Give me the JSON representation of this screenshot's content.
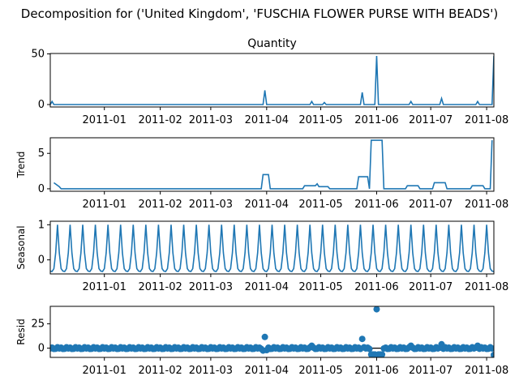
{
  "figure_title": "Decomposition for ('United Kingdom', 'FUSCHIA FLOWER PURSE WITH BEADS')",
  "colors": {
    "line": "#1f77b4",
    "axis": "#000000",
    "zero_line": "#000000"
  },
  "chart_data": [
    {
      "type": "line",
      "name": "observed",
      "title": "Quantity",
      "ylabel": "",
      "xlim": [
        "2010-12-02",
        "2011-08-05"
      ],
      "ylim": [
        -2.4,
        50.4
      ],
      "yticks": [
        0,
        50
      ],
      "xticks": [
        "2011-01",
        "2011-02",
        "2011-03",
        "2011-04",
        "2011-05",
        "2011-06",
        "2011-07",
        "2011-08"
      ],
      "baseline": 0,
      "spikes": [
        {
          "x": "2010-12-03",
          "y": 3
        },
        {
          "x": "2011-03-31",
          "y": 14
        },
        {
          "x": "2011-04-26",
          "y": 3
        },
        {
          "x": "2011-05-03",
          "y": 2
        },
        {
          "x": "2011-05-24",
          "y": 12
        },
        {
          "x": "2011-06-01",
          "y": 48
        },
        {
          "x": "2011-06-20",
          "y": 3
        },
        {
          "x": "2011-07-07",
          "y": 6
        },
        {
          "x": "2011-07-27",
          "y": 3
        },
        {
          "x": "2011-08-05",
          "y": 48
        }
      ]
    },
    {
      "type": "line",
      "name": "trend",
      "title": "",
      "ylabel": "Trend",
      "xlim": [
        "2010-12-02",
        "2011-08-05"
      ],
      "ylim": [
        -0.35,
        7.2
      ],
      "yticks": [
        0,
        5
      ],
      "xticks": [
        "2011-01",
        "2011-02",
        "2011-03",
        "2011-04",
        "2011-05",
        "2011-06",
        "2011-07",
        "2011-08"
      ],
      "points": [
        [
          "2010-12-04",
          0.85
        ],
        [
          "2010-12-07",
          0.3
        ],
        [
          "2010-12-08",
          0.0
        ],
        [
          "2011-03-29",
          0.0
        ],
        [
          "2011-03-30",
          2.0
        ],
        [
          "2011-04-02",
          2.0
        ],
        [
          "2011-04-03",
          0.0
        ],
        [
          "2011-04-21",
          0.0
        ],
        [
          "2011-04-22",
          0.43
        ],
        [
          "2011-04-28",
          0.43
        ],
        [
          "2011-04-29",
          0.7
        ],
        [
          "2011-04-30",
          0.3
        ],
        [
          "2011-05-05",
          0.3
        ],
        [
          "2011-05-06",
          0.0
        ],
        [
          "2011-05-21",
          0.0
        ],
        [
          "2011-05-22",
          1.7
        ],
        [
          "2011-05-27",
          1.7
        ],
        [
          "2011-05-28",
          0.0
        ],
        [
          "2011-05-29",
          6.85
        ],
        [
          "2011-06-04",
          6.85
        ],
        [
          "2011-06-05",
          0.0
        ],
        [
          "2011-06-17",
          0.0
        ],
        [
          "2011-06-18",
          0.43
        ],
        [
          "2011-06-24",
          0.43
        ],
        [
          "2011-06-25",
          0.0
        ],
        [
          "2011-07-02",
          0.0
        ],
        [
          "2011-07-03",
          0.86
        ],
        [
          "2011-07-09",
          0.86
        ],
        [
          "2011-07-10",
          0.0
        ],
        [
          "2011-07-23",
          0.0
        ],
        [
          "2011-07-24",
          0.43
        ],
        [
          "2011-07-30",
          0.43
        ],
        [
          "2011-07-31",
          0.0
        ],
        [
          "2011-08-03",
          0.0
        ],
        [
          "2011-08-04",
          6.85
        ]
      ]
    },
    {
      "type": "line",
      "name": "seasonal",
      "title": "",
      "ylabel": "Seasonal",
      "xlim": [
        "2010-12-02",
        "2011-08-05"
      ],
      "ylim": [
        -0.4,
        1.1
      ],
      "yticks": [
        0,
        1
      ],
      "xticks": [
        "2011-01",
        "2011-02",
        "2011-03",
        "2011-04",
        "2011-05",
        "2011-06",
        "2011-07",
        "2011-08"
      ],
      "start": "2010-12-02",
      "end": "2011-08-05",
      "cycle": [
        -0.32,
        -0.33,
        -0.25,
        0.2,
        1.0,
        0.2,
        -0.25
      ]
    },
    {
      "type": "scatter",
      "name": "resid",
      "title": "",
      "ylabel": "Resid",
      "xlim": [
        "2010-12-02",
        "2011-08-05"
      ],
      "ylim": [
        -9.5,
        43
      ],
      "yticks": [
        0,
        25
      ],
      "xticks": [
        "2011-01",
        "2011-02",
        "2011-03",
        "2011-04",
        "2011-05",
        "2011-06",
        "2011-07",
        "2011-08"
      ],
      "zero_line": 0,
      "start": "2010-12-02",
      "end": "2011-08-05",
      "base_cycle": [
        -0.3,
        0.5,
        -0.8,
        -0.6,
        0.9
      ],
      "outliers": [
        {
          "x": "2011-03-30",
          "y": -2.5
        },
        {
          "x": "2011-03-31",
          "y": 11.5
        },
        {
          "x": "2011-04-01",
          "y": -2.0
        },
        {
          "x": "2011-04-26",
          "y": 2.5
        },
        {
          "x": "2011-05-24",
          "y": 9.5
        },
        {
          "x": "2011-05-29",
          "y": -6.5
        },
        {
          "x": "2011-05-30",
          "y": -6.5
        },
        {
          "x": "2011-05-31",
          "y": -6.5
        },
        {
          "x": "2011-06-01",
          "y": 40
        },
        {
          "x": "2011-06-02",
          "y": -6.5
        },
        {
          "x": "2011-06-03",
          "y": -6.5
        },
        {
          "x": "2011-06-04",
          "y": -6.5
        },
        {
          "x": "2011-06-20",
          "y": 2.5
        },
        {
          "x": "2011-07-07",
          "y": 4.0
        },
        {
          "x": "2011-07-27",
          "y": 2.5
        },
        {
          "x": "2011-08-05",
          "y": -7.0
        }
      ]
    }
  ]
}
